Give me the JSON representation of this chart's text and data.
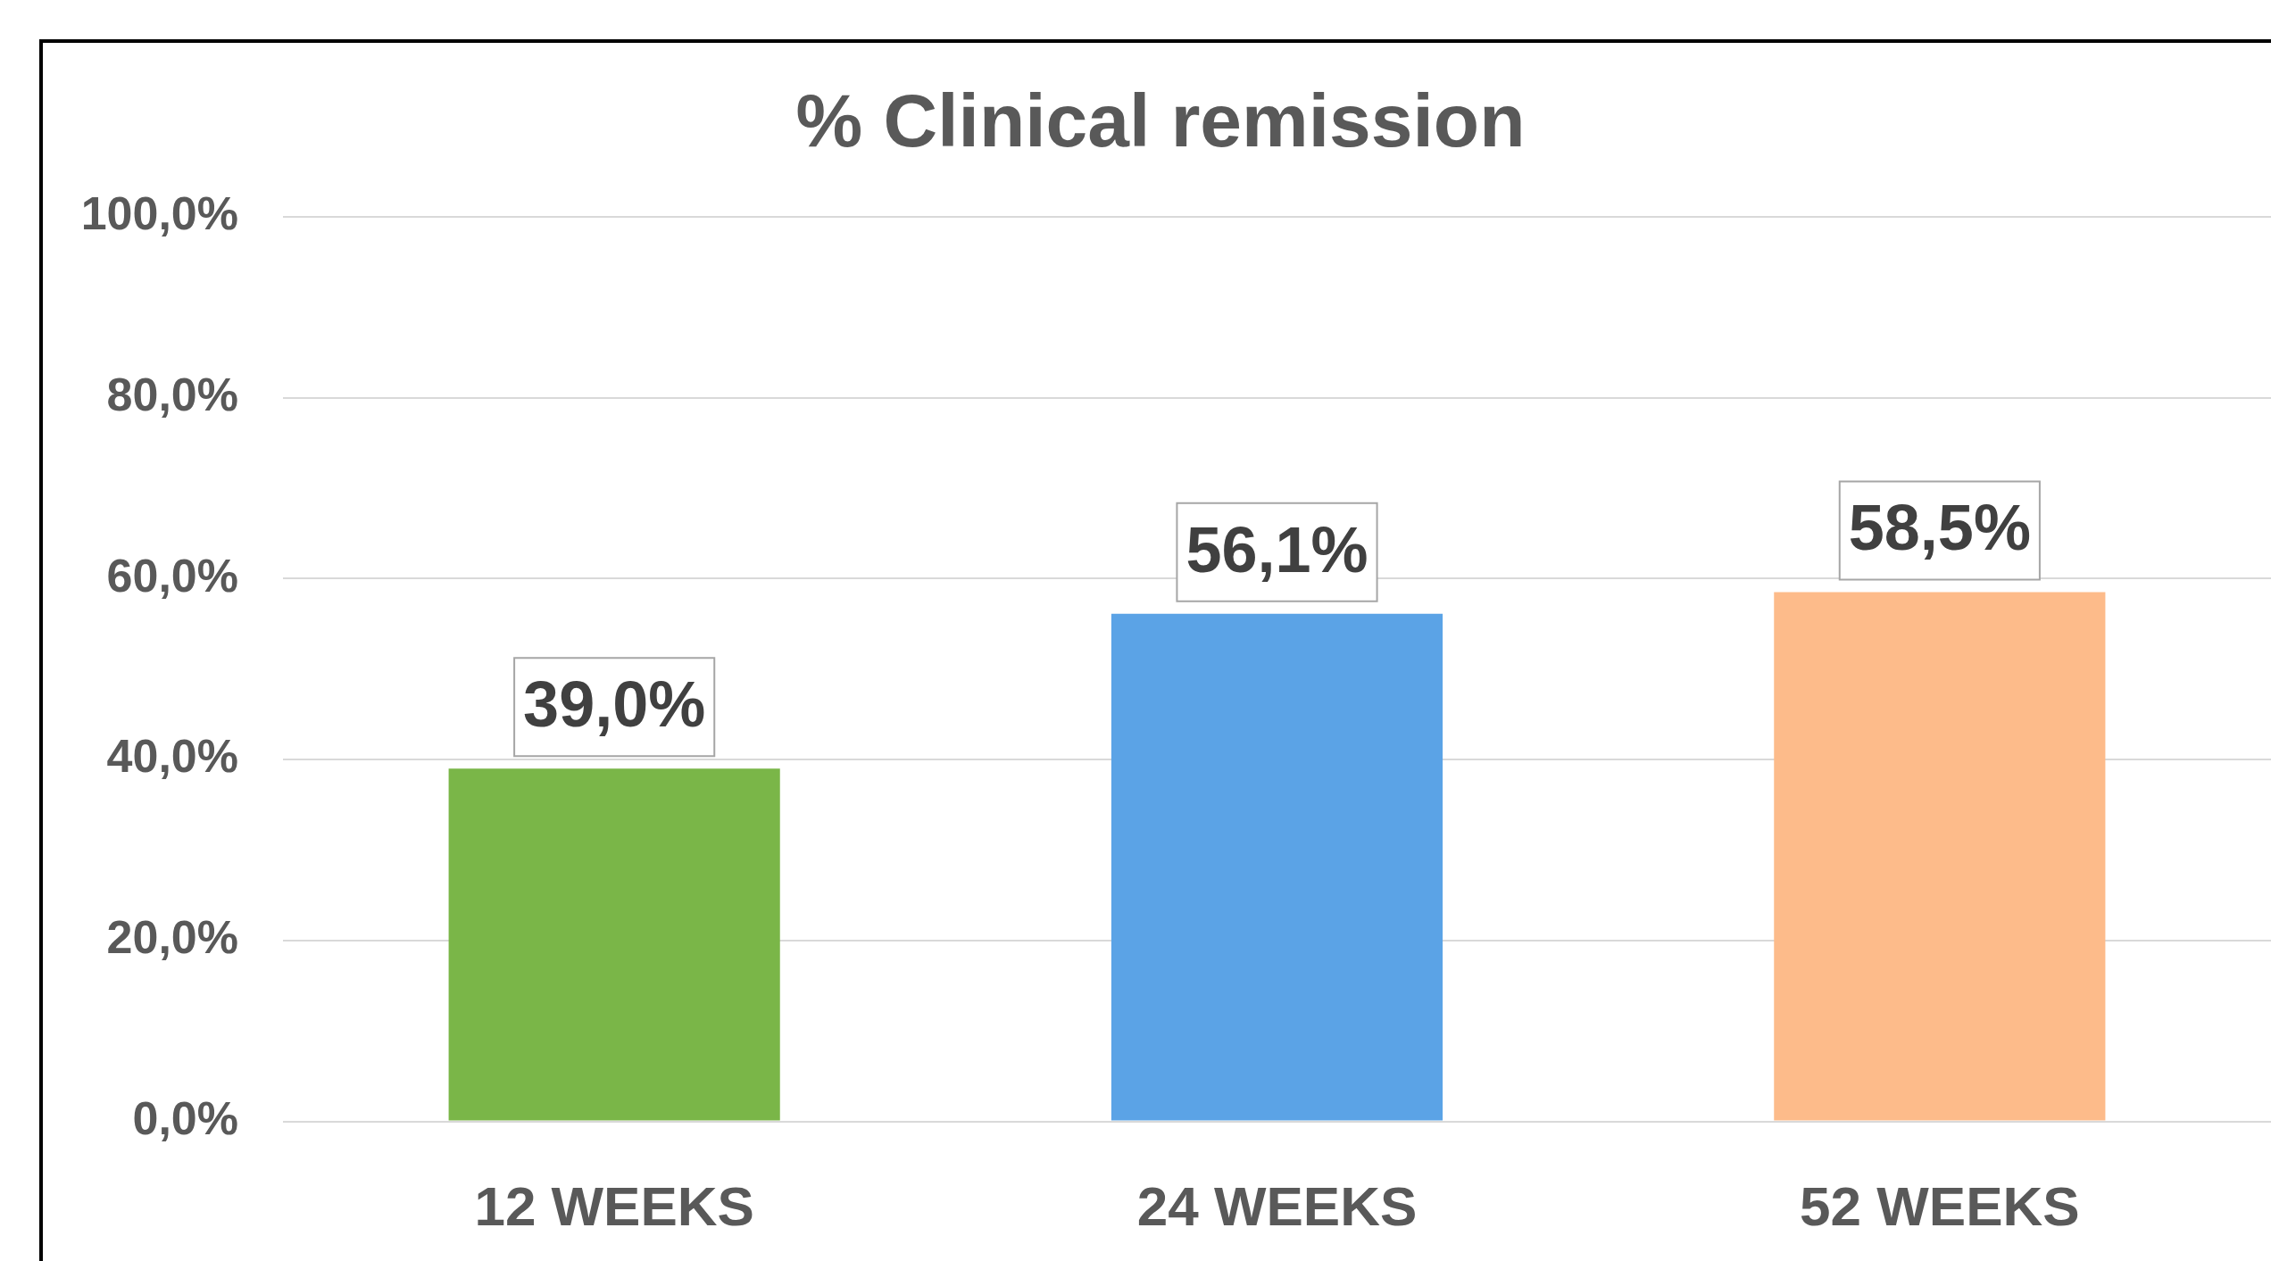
{
  "chart_data": {
    "type": "bar",
    "title": "% Clinical remission",
    "categories": [
      "12 WEEKS",
      "24 WEEKS",
      "52 WEEKS"
    ],
    "values": [
      39.0,
      56.1,
      58.5
    ],
    "colors": [
      "#7ab648",
      "#5ba3e6",
      "#fdbb8a"
    ],
    "value_labels": [
      "39,0%",
      "56,1%",
      "58,5%"
    ],
    "ylim": [
      0,
      100
    ],
    "yticks": [
      {
        "value": 0,
        "label": "0,0%"
      },
      {
        "value": 20,
        "label": "20,0%"
      },
      {
        "value": 40,
        "label": "40,0%"
      },
      {
        "value": 60,
        "label": "60,0%"
      },
      {
        "value": 80,
        "label": "80,0%"
      },
      {
        "value": 100,
        "label": "100,0%"
      }
    ],
    "grid": "y",
    "legend": false
  }
}
